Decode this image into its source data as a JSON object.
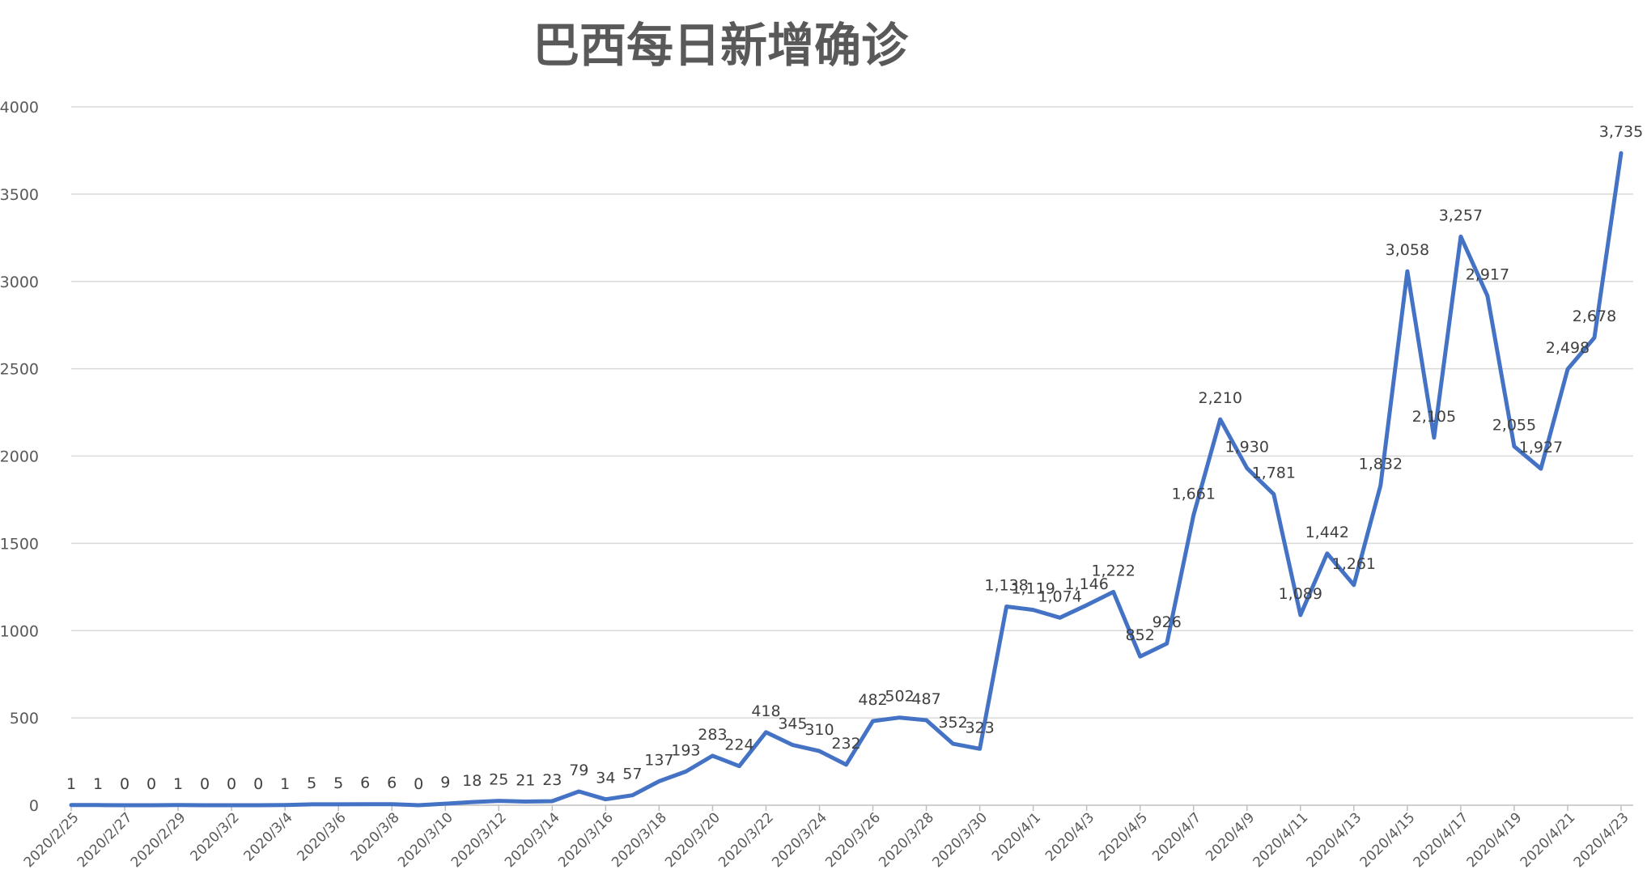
{
  "chart_data": {
    "type": "line",
    "title": "巴西每日新增确诊",
    "xlabel": "",
    "ylabel": "",
    "ylim": [
      0,
      4000
    ],
    "yticks": [
      "0",
      "500",
      "1000",
      "1500",
      "2000",
      "2500",
      "3000",
      "3500",
      "4000"
    ],
    "grid": true,
    "legend": "none",
    "line_color": "#4472c4",
    "x": [
      "2020/2/25",
      "2020/2/26",
      "2020/2/27",
      "2020/2/28",
      "2020/2/29",
      "2020/3/1",
      "2020/3/2",
      "2020/3/3",
      "2020/3/4",
      "2020/3/5",
      "2020/3/6",
      "2020/3/7",
      "2020/3/8",
      "2020/3/9",
      "2020/3/10",
      "2020/3/11",
      "2020/3/12",
      "2020/3/13",
      "2020/3/14",
      "2020/3/15",
      "2020/3/16",
      "2020/3/17",
      "2020/3/18",
      "2020/3/19",
      "2020/3/20",
      "2020/3/21",
      "2020/3/22",
      "2020/3/23",
      "2020/3/24",
      "2020/3/25",
      "2020/3/26",
      "2020/3/27",
      "2020/3/28",
      "2020/3/29",
      "2020/3/30",
      "2020/3/31",
      "2020/4/1",
      "2020/4/2",
      "2020/4/3",
      "2020/4/4",
      "2020/4/5",
      "2020/4/6",
      "2020/4/7",
      "2020/4/8",
      "2020/4/9",
      "2020/4/10",
      "2020/4/11",
      "2020/4/12",
      "2020/4/13",
      "2020/4/14",
      "2020/4/15",
      "2020/4/16",
      "2020/4/17",
      "2020/4/18",
      "2020/4/19",
      "2020/4/20",
      "2020/4/21",
      "2020/4/22",
      "2020/4/23"
    ],
    "xtick_labels": [
      "2020/2/25",
      "2020/2/27",
      "2020/2/29",
      "2020/3/2",
      "2020/3/4",
      "2020/3/6",
      "2020/3/8",
      "2020/3/10",
      "2020/3/12",
      "2020/3/14",
      "2020/3/16",
      "2020/3/18",
      "2020/3/20",
      "2020/3/22",
      "2020/3/24",
      "2020/3/26",
      "2020/3/28",
      "2020/3/30",
      "2020/4/1",
      "2020/4/3",
      "2020/4/5",
      "2020/4/7",
      "2020/4/9",
      "2020/4/11",
      "2020/4/13",
      "2020/4/15",
      "2020/4/17",
      "2020/4/19",
      "2020/4/21",
      "2020/4/23"
    ],
    "values": [
      1,
      1,
      0,
      0,
      1,
      0,
      0,
      0,
      1,
      5,
      5,
      6,
      6,
      0,
      9,
      18,
      25,
      21,
      23,
      79,
      34,
      57,
      137,
      193,
      283,
      224,
      418,
      345,
      310,
      232,
      482,
      502,
      487,
      352,
      323,
      1138,
      1119,
      1074,
      1146,
      1222,
      852,
      926,
      1661,
      2210,
      1930,
      1781,
      1089,
      1442,
      1261,
      1832,
      3058,
      2105,
      3257,
      2917,
      2055,
      1927,
      2498,
      2678,
      3735
    ],
    "data_labels": [
      "1",
      "1",
      "0",
      "0",
      "1",
      "0",
      "0",
      "0",
      "1",
      "5",
      "5",
      "6",
      "6",
      "0",
      "9",
      "18",
      "25",
      "21",
      "23",
      "79",
      "34",
      "57",
      "137",
      "193",
      "283",
      "224",
      "418",
      "345",
      "310",
      "232",
      "482",
      "502",
      "487",
      "352",
      "323",
      "1,138",
      "1,119",
      "1,074",
      "1,146",
      "1,222",
      "852",
      "926",
      "1,661",
      "2,210",
      "1,930",
      "1,781",
      "1,089",
      "1,442",
      "1,261",
      "1,832",
      "3,058",
      "2,105",
      "3,257",
      "2,917",
      "2,055",
      "1,927",
      "2,498",
      "2,678",
      "3,735"
    ]
  }
}
